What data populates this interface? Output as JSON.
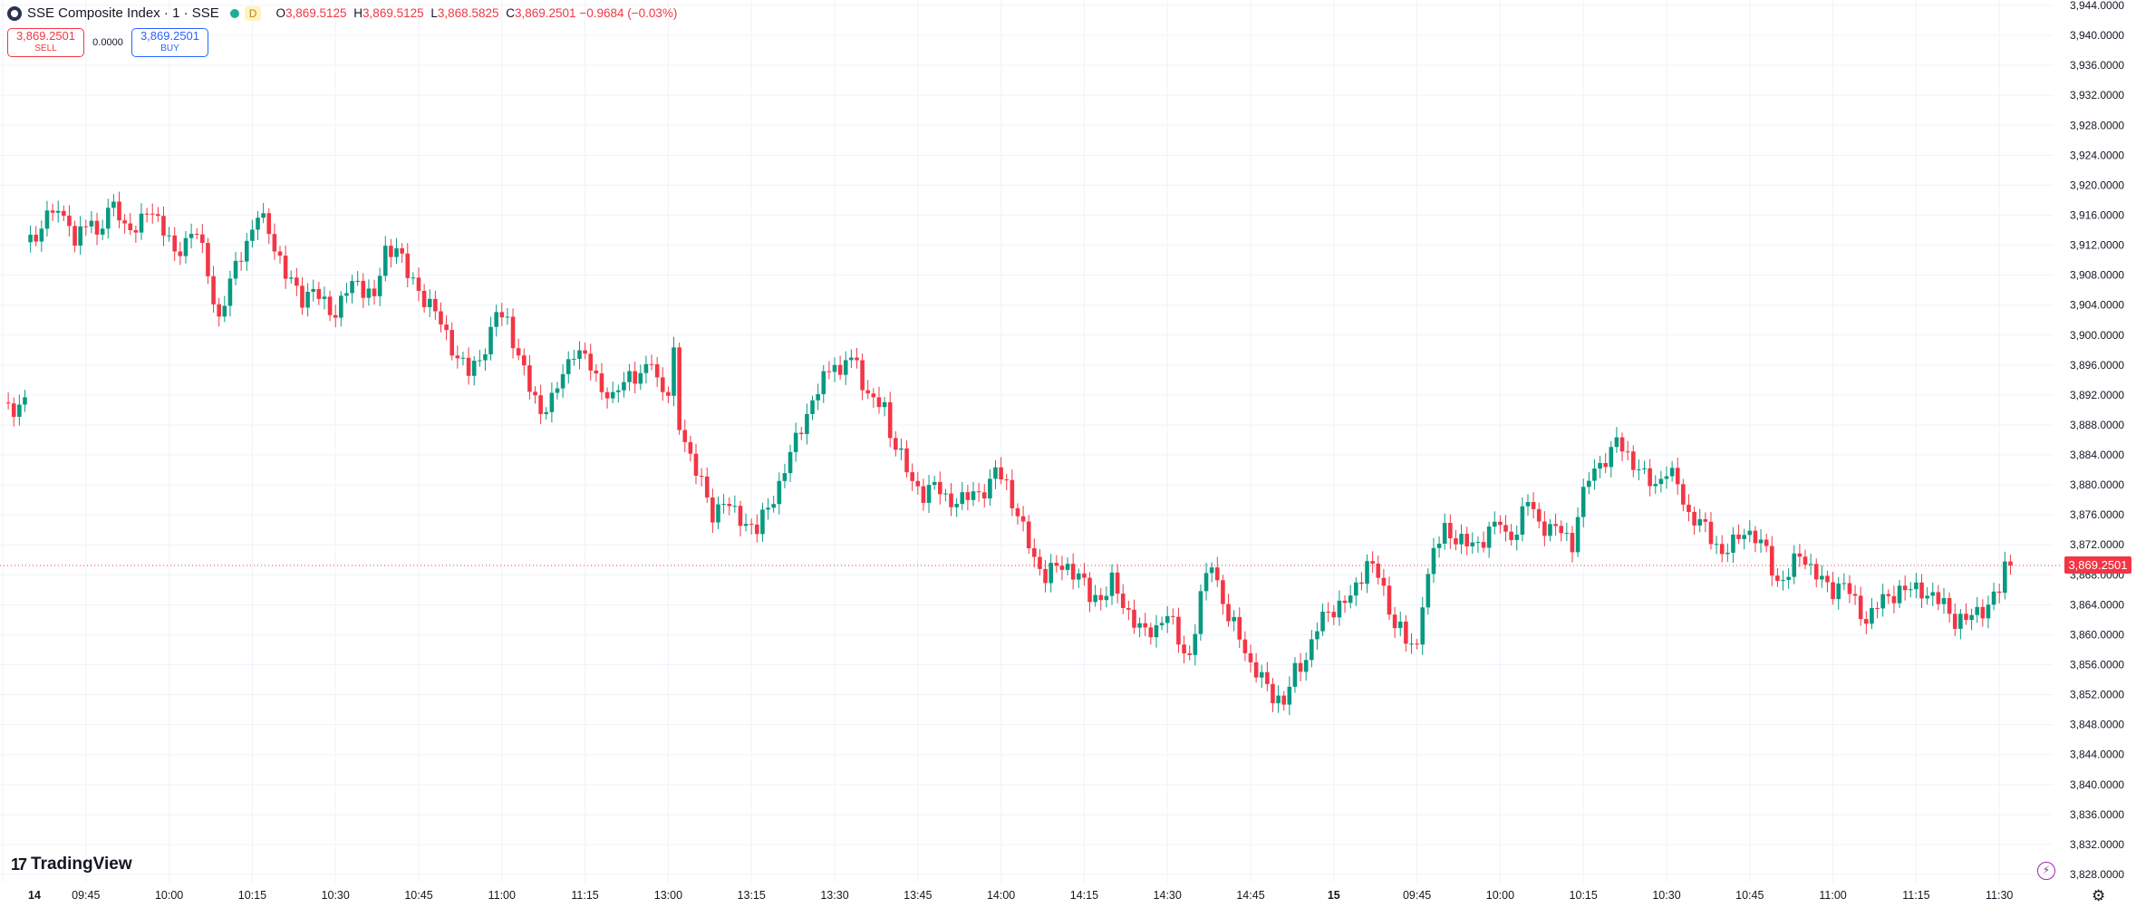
{
  "legend": {
    "symbol": "SSE Composite Index · 1 · SSE",
    "badge": "D",
    "o_label": "O",
    "o_value": "3,869.5125",
    "h_label": "H",
    "h_value": "3,869.5125",
    "l_label": "L",
    "l_value": "3,868.5825",
    "c_label": "C",
    "c_value": "3,869.2501",
    "change": "−0.9684 (−0.03%)"
  },
  "trade": {
    "sell_price": "3,869.2501",
    "sell_label": "SELL",
    "spread": "0.0000",
    "buy_price": "3,869.2501",
    "buy_label": "BUY"
  },
  "brand": {
    "name": "TradingView"
  },
  "last_price_label": "3,869.2501",
  "icons": {
    "symbol": "sse-logo-icon",
    "bolt": "lightning-icon",
    "settings": "gear-icon"
  },
  "colors": {
    "up": "#089981",
    "down": "#f23645",
    "grid": "#f0f3fa",
    "axis_text": "#131722"
  },
  "chart_data": {
    "type": "candlestick",
    "title": "SSE Composite Index · 1 · SSE",
    "grid": true,
    "last_price": 3869.2501,
    "ylim": [
      3826,
      3944
    ],
    "y_ticks": [
      "3,828.0000",
      "3,832.0000",
      "3,836.0000",
      "3,840.0000",
      "3,844.0000",
      "3,848.0000",
      "3,852.0000",
      "3,856.0000",
      "3,860.0000",
      "3,864.0000",
      "3,868.0000",
      "3,872.0000",
      "3,876.0000",
      "3,880.0000",
      "3,884.0000",
      "3,888.0000",
      "3,892.0000",
      "3,896.0000",
      "3,900.0000",
      "3,904.0000",
      "3,908.0000",
      "3,912.0000",
      "3,916.0000",
      "3,920.0000",
      "3,924.0000",
      "3,928.0000",
      "3,932.0000",
      "3,936.0000",
      "3,940.0000",
      "3,944.0000"
    ],
    "y_tick_values": [
      3828,
      3832,
      3836,
      3840,
      3844,
      3848,
      3852,
      3856,
      3860,
      3864,
      3868,
      3872,
      3876,
      3880,
      3884,
      3888,
      3892,
      3896,
      3900,
      3904,
      3908,
      3912,
      3916,
      3920,
      3924,
      3928,
      3932,
      3936,
      3940,
      3944
    ],
    "x_tick_labels": [
      "14",
      "09:45",
      "10:00",
      "10:15",
      "10:30",
      "10:45",
      "11:00",
      "11:15",
      "13:00",
      "13:15",
      "13:30",
      "13:45",
      "14:00",
      "14:15",
      "14:30",
      "14:45",
      "15",
      "09:45",
      "10:00",
      "10:15",
      "10:30",
      "10:45",
      "11:00",
      "11:15",
      "11:30"
    ],
    "x_tick_index": [
      0,
      15,
      30,
      45,
      60,
      75,
      90,
      105,
      120,
      135,
      150,
      165,
      180,
      195,
      210,
      225,
      240,
      255,
      270,
      285,
      300,
      315,
      330,
      345,
      360
    ],
    "close_path": [
      [
        0,
        3891
      ],
      [
        3,
        3890
      ],
      [
        4,
        3891
      ],
      [
        5,
        3914
      ],
      [
        6,
        3912
      ],
      [
        7,
        3915
      ],
      [
        8,
        3917
      ],
      [
        9,
        3915
      ],
      [
        10,
        3917
      ],
      [
        11,
        3916
      ],
      [
        13,
        3913
      ],
      [
        15,
        3914
      ],
      [
        16,
        3916
      ],
      [
        17,
        3913
      ],
      [
        19,
        3917
      ],
      [
        21,
        3916
      ],
      [
        23,
        3914
      ],
      [
        25,
        3915
      ],
      [
        27,
        3917
      ],
      [
        29,
        3914
      ],
      [
        30,
        3913
      ],
      [
        31,
        3910
      ],
      [
        33,
        3913
      ],
      [
        35,
        3914
      ],
      [
        37,
        3908
      ],
      [
        39,
        3902
      ],
      [
        41,
        3907
      ],
      [
        43,
        3911
      ],
      [
        45,
        3914
      ],
      [
        46,
        3916
      ],
      [
        48,
        3914
      ],
      [
        51,
        3908
      ],
      [
        54,
        3905
      ],
      [
        56,
        3906
      ],
      [
        58,
        3904
      ],
      [
        60,
        3903
      ],
      [
        62,
        3906
      ],
      [
        64,
        3907
      ],
      [
        67,
        3905
      ],
      [
        69,
        3911
      ],
      [
        71,
        3912
      ],
      [
        73,
        3908
      ],
      [
        75,
        3906
      ],
      [
        78,
        3903
      ],
      [
        80,
        3900
      ],
      [
        82,
        3897
      ],
      [
        84,
        3895
      ],
      [
        86,
        3897
      ],
      [
        88,
        3900
      ],
      [
        89,
        3903
      ],
      [
        91,
        3902
      ],
      [
        93,
        3897
      ],
      [
        95,
        3893
      ],
      [
        97,
        3890
      ],
      [
        99,
        3891
      ],
      [
        101,
        3895
      ],
      [
        103,
        3898
      ],
      [
        106,
        3896
      ],
      [
        108,
        3893
      ],
      [
        110,
        3891
      ],
      [
        111,
        3893
      ],
      [
        113,
        3895
      ],
      [
        115,
        3894
      ],
      [
        117,
        3897
      ],
      [
        118,
        3894
      ],
      [
        120,
        3892
      ],
      [
        121,
        3897
      ],
      [
        122,
        3888
      ],
      [
        124,
        3884
      ],
      [
        126,
        3880
      ],
      [
        128,
        3876
      ],
      [
        130,
        3878
      ],
      [
        132,
        3876
      ],
      [
        134,
        3875
      ],
      [
        136,
        3874
      ],
      [
        138,
        3877
      ],
      [
        140,
        3880
      ],
      [
        142,
        3884
      ],
      [
        144,
        3888
      ],
      [
        146,
        3891
      ],
      [
        148,
        3894
      ],
      [
        150,
        3897
      ],
      [
        151,
        3894
      ],
      [
        152,
        3897
      ],
      [
        154,
        3896
      ],
      [
        156,
        3892
      ],
      [
        159,
        3890
      ],
      [
        160,
        3887
      ],
      [
        162,
        3884
      ],
      [
        164,
        3880
      ],
      [
        166,
        3879
      ],
      [
        168,
        3880
      ],
      [
        170,
        3878
      ],
      [
        173,
        3878
      ],
      [
        176,
        3879
      ],
      [
        178,
        3880
      ],
      [
        179,
        3882
      ],
      [
        181,
        3880
      ],
      [
        182,
        3878
      ],
      [
        184,
        3874
      ],
      [
        186,
        3870
      ],
      [
        188,
        3868
      ],
      [
        190,
        3869
      ],
      [
        192,
        3869
      ],
      [
        194,
        3868
      ],
      [
        196,
        3865
      ],
      [
        198,
        3865
      ],
      [
        200,
        3867
      ],
      [
        202,
        3864
      ],
      [
        204,
        3862
      ],
      [
        206,
        3860
      ],
      [
        208,
        3861
      ],
      [
        210,
        3863
      ],
      [
        212,
        3859
      ],
      [
        214,
        3857
      ],
      [
        216,
        3865
      ],
      [
        218,
        3870
      ],
      [
        219,
        3867
      ],
      [
        221,
        3862
      ],
      [
        223,
        3860
      ],
      [
        225,
        3856
      ],
      [
        227,
        3854
      ],
      [
        229,
        3852
      ],
      [
        231,
        3851
      ],
      [
        233,
        3855
      ],
      [
        235,
        3857
      ],
      [
        237,
        3861
      ],
      [
        239,
        3863
      ],
      [
        241,
        3864
      ],
      [
        243,
        3865
      ],
      [
        244,
        3866
      ],
      [
        246,
        3870
      ],
      [
        248,
        3868
      ],
      [
        250,
        3863
      ],
      [
        252,
        3861
      ],
      [
        253,
        3859
      ],
      [
        255,
        3858
      ],
      [
        256,
        3865
      ],
      [
        258,
        3871
      ],
      [
        260,
        3874
      ],
      [
        262,
        3873
      ],
      [
        264,
        3872
      ],
      [
        266,
        3872
      ],
      [
        268,
        3874
      ],
      [
        270,
        3875
      ],
      [
        271,
        3873
      ],
      [
        273,
        3874
      ],
      [
        275,
        3878
      ],
      [
        277,
        3875
      ],
      [
        279,
        3874
      ],
      [
        281,
        3874
      ],
      [
        283,
        3872
      ],
      [
        284,
        3876
      ],
      [
        286,
        3881
      ],
      [
        288,
        3883
      ],
      [
        290,
        3884
      ],
      [
        291,
        3886
      ],
      [
        292,
        3885
      ],
      [
        294,
        3883
      ],
      [
        296,
        3881
      ],
      [
        298,
        3880
      ],
      [
        300,
        3882
      ],
      [
        302,
        3880
      ],
      [
        304,
        3876
      ],
      [
        306,
        3875
      ],
      [
        308,
        3873
      ],
      [
        310,
        3871
      ],
      [
        312,
        3872
      ],
      [
        314,
        3874
      ],
      [
        316,
        3873
      ],
      [
        318,
        3871
      ],
      [
        320,
        3867
      ],
      [
        322,
        3868
      ],
      [
        324,
        3871
      ],
      [
        326,
        3869
      ],
      [
        328,
        3867
      ],
      [
        330,
        3866
      ],
      [
        332,
        3867
      ],
      [
        334,
        3864
      ],
      [
        336,
        3862
      ],
      [
        338,
        3864
      ],
      [
        340,
        3865
      ],
      [
        342,
        3866
      ],
      [
        344,
        3866
      ],
      [
        346,
        3866
      ],
      [
        348,
        3865
      ],
      [
        350,
        3864
      ],
      [
        352,
        3862
      ],
      [
        354,
        3862
      ],
      [
        356,
        3863
      ],
      [
        358,
        3864
      ],
      [
        360,
        3866
      ],
      [
        361,
        3869
      ],
      [
        362,
        3869.25
      ]
    ]
  }
}
